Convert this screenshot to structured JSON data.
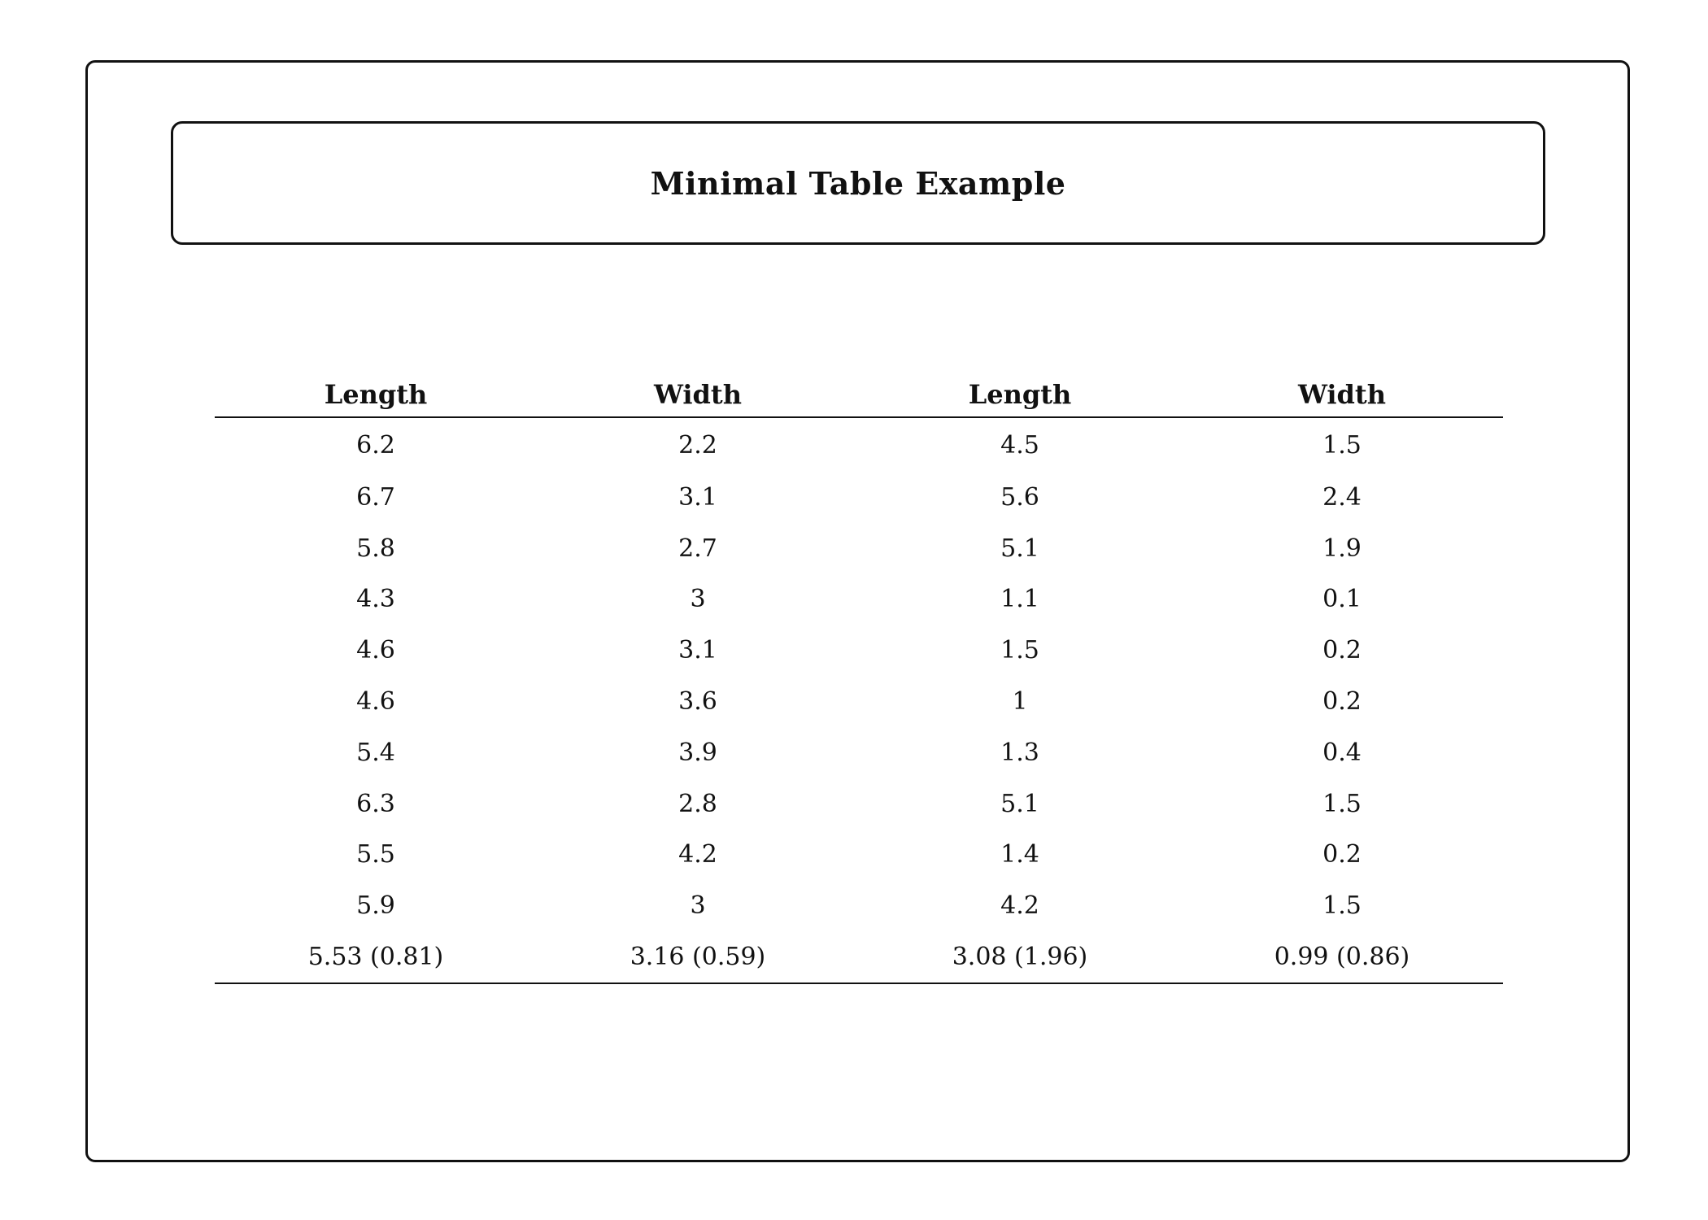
{
  "title": "Minimal Table Example",
  "table": {
    "headers": [
      "Length",
      "Width",
      "Length",
      "Width"
    ],
    "rows": [
      [
        "6.2",
        "2.2",
        "4.5",
        "1.5"
      ],
      [
        "6.7",
        "3.1",
        "5.6",
        "2.4"
      ],
      [
        "5.8",
        "2.7",
        "5.1",
        "1.9"
      ],
      [
        "4.3",
        "3",
        "1.1",
        "0.1"
      ],
      [
        "4.6",
        "3.1",
        "1.5",
        "0.2"
      ],
      [
        "4.6",
        "3.6",
        "1",
        "0.2"
      ],
      [
        "5.4",
        "3.9",
        "1.3",
        "0.4"
      ],
      [
        "6.3",
        "2.8",
        "5.1",
        "1.5"
      ],
      [
        "5.5",
        "4.2",
        "1.4",
        "0.2"
      ],
      [
        "5.9",
        "3",
        "4.2",
        "1.5"
      ],
      [
        "5.53 (0.81)",
        "3.16 (0.59)",
        "3.08 (1.96)",
        "0.99 (0.86)"
      ]
    ]
  }
}
